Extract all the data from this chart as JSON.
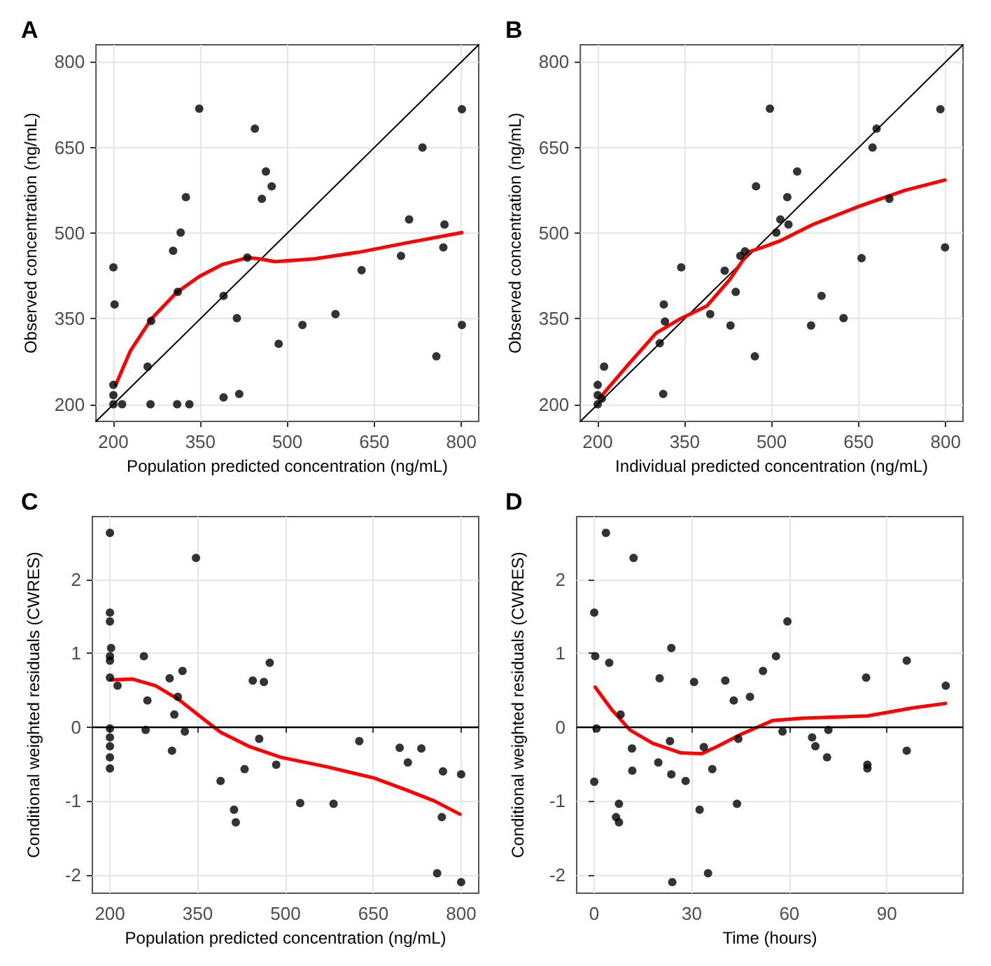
{
  "chart_data": [
    {
      "type": "scatter",
      "title": "A",
      "xlabel": "Population predicted concentration (ng/mL)",
      "ylabel": "Observed concentration (ng/mL)",
      "xlim": [
        170,
        830
      ],
      "ylim": [
        170,
        830
      ],
      "xticks": [
        200,
        350,
        500,
        650,
        800
      ],
      "yticks": [
        200,
        350,
        500,
        650,
        800
      ],
      "grid": true,
      "series": [
        {
          "marker": "circle",
          "color": "#000000",
          "x": [
            200,
            202,
            200,
            200,
            265,
            259,
            303,
            316,
            325,
            311,
            348,
            390,
            413,
            390,
            417,
            431,
            444,
            463,
            473,
            456,
            485,
            526,
            583,
            628,
            696,
            710,
            733,
            771,
            769,
            757,
            801,
            801,
            200,
            215,
            264,
            310,
            331
          ],
          "values": [
            440,
            375,
            234,
            216,
            346,
            266,
            469,
            501,
            563,
            397,
            718,
            390,
            351,
            212,
            218,
            457,
            683,
            608,
            582,
            560,
            306,
            339,
            358,
            435,
            460,
            524,
            650,
            515,
            475,
            284,
            717,
            339,
            200,
            200,
            200,
            200,
            200
          ]
        },
        {
          "type": "line",
          "marker": "none",
          "color": "#ff0000",
          "x": [
            204,
            229,
            265,
            309,
            348,
            388,
            431,
            452,
            479,
            547,
            626,
            706,
            801
          ],
          "values": [
            234,
            293,
            349,
            396,
            424,
            445,
            457,
            455,
            450,
            455,
            467,
            483,
            501
          ]
        },
        {
          "type": "line",
          "marker": "none",
          "color": "#000000",
          "x": [
            170,
            830
          ],
          "values": [
            170,
            830
          ]
        }
      ]
    },
    {
      "type": "scatter",
      "title": "B",
      "xlabel": "Individual predicted concentration (ng/mL)",
      "ylabel": "Observed concentration (ng/mL)",
      "xlim": [
        170,
        830
      ],
      "ylim": [
        170,
        830
      ],
      "xticks": [
        200,
        350,
        500,
        650,
        800
      ],
      "yticks": [
        200,
        350,
        500,
        650,
        800
      ],
      "grid": true,
      "series": [
        {
          "marker": "circle",
          "color": "#000000",
          "x": [
            200,
            200,
            207,
            211,
            307,
            313,
            314,
            316,
            344,
            394,
            419,
            429,
            438,
            446,
            454,
            471,
            473,
            497,
            508,
            515,
            527,
            529,
            544,
            568,
            586,
            624,
            655,
            674,
            681,
            703,
            791,
            799,
            200
          ],
          "values": [
            234,
            216,
            210,
            266,
            307,
            218,
            375,
            345,
            440,
            358,
            434,
            338,
            397,
            460,
            468,
            284,
            582,
            718,
            501,
            524,
            563,
            515,
            608,
            338,
            390,
            351,
            456,
            650,
            683,
            560,
            717,
            475,
            200
          ]
        },
        {
          "type": "line",
          "marker": "none",
          "color": "#ff0000",
          "x": [
            206,
            253,
            301,
            341,
            388,
            428,
            460,
            484,
            516,
            571,
            651,
            730,
            799
          ],
          "values": [
            214,
            270,
            325,
            349,
            372,
            419,
            467,
            475,
            487,
            515,
            547,
            575,
            593
          ]
        },
        {
          "type": "line",
          "marker": "none",
          "color": "#000000",
          "x": [
            170,
            830
          ],
          "values": [
            170,
            830
          ]
        }
      ]
    },
    {
      "type": "scatter",
      "title": "C",
      "xlabel": "Population predicted concentration (ng/mL)",
      "ylabel": "Conditional weighted residuals (CWRES)",
      "xlim": [
        170,
        830
      ],
      "ylim": [
        -2.25,
        2.85
      ],
      "xticks": [
        200,
        350,
        500,
        650,
        800
      ],
      "yticks": [
        -2,
        -1,
        0,
        1,
        2
      ],
      "grid": true,
      "ref_lines": [
        {
          "axis": "y",
          "value": 0,
          "color": "#000000"
        }
      ],
      "series": [
        {
          "marker": "circle",
          "color": "#000000",
          "x": [
            200,
            200,
            200,
            202,
            200,
            200,
            200,
            200,
            200,
            200,
            200,
            200,
            213,
            258,
            264,
            261,
            302,
            324,
            316,
            310,
            306,
            328,
            347,
            389,
            412,
            415,
            430,
            444,
            463,
            473,
            455,
            484,
            525,
            582,
            626,
            695,
            709,
            732,
            769,
            767,
            800,
            759,
            800
          ],
          "values": [
            2.63,
            1.55,
            1.43,
            1.07,
            0.96,
            0.9,
            0.67,
            -0.02,
            -0.14,
            -0.26,
            -0.41,
            -0.56,
            0.56,
            0.96,
            0.36,
            -0.04,
            0.66,
            0.76,
            0.41,
            0.17,
            -0.32,
            -0.06,
            2.29,
            -0.73,
            -1.12,
            -1.29,
            -0.57,
            0.63,
            0.61,
            0.87,
            -0.16,
            -0.51,
            -1.03,
            -1.04,
            -0.19,
            -0.28,
            -0.48,
            -0.29,
            -0.6,
            -1.22,
            -0.64,
            -1.98,
            -2.1
          ]
        },
        {
          "type": "line",
          "marker": "none",
          "color": "#ff0000",
          "x": [
            203,
            239,
            278,
            318,
            358,
            389,
            437,
            492,
            572,
            651,
            706,
            754,
            798
          ],
          "values": [
            0.64,
            0.65,
            0.56,
            0.37,
            0.12,
            -0.07,
            -0.26,
            -0.41,
            -0.54,
            -0.69,
            -0.85,
            -1.0,
            -1.18
          ]
        }
      ]
    },
    {
      "type": "scatter",
      "title": "D",
      "xlabel": "Time (hours)",
      "ylabel": "Conditional weighted residuals (CWRES)",
      "xlim": [
        -5.4,
        113.4
      ],
      "ylim": [
        -2.25,
        2.85
      ],
      "xticks": [
        0,
        30,
        60,
        90
      ],
      "yticks": [
        -2,
        -1,
        0,
        1,
        2
      ],
      "grid": true,
      "ref_lines": [
        {
          "axis": "y",
          "value": 0,
          "color": "#000000"
        }
      ],
      "series": [
        {
          "marker": "circle",
          "color": "#000000",
          "x": [
            0,
            0.3,
            0.7,
            0,
            3.6,
            4.6,
            8.1,
            7.6,
            6.7,
            7.6,
            11.6,
            11.7,
            12.1,
            20.1,
            19.7,
            23.7,
            23.3,
            23.7,
            28.1,
            30.7,
            32.4,
            33.7,
            36.3,
            40.3,
            42.9,
            44.3,
            43.9,
            47.9,
            51.9,
            55.9,
            57.9,
            59.4,
            67,
            68,
            71.6,
            72,
            83.6,
            84,
            84,
            96.1,
            96.1,
            108.1,
            24,
            35
          ],
          "values": [
            1.55,
            0.96,
            -0.02,
            -0.74,
            2.63,
            0.87,
            0.17,
            -1.04,
            -1.22,
            -1.29,
            -0.29,
            -0.59,
            2.29,
            0.66,
            -0.48,
            1.07,
            -0.19,
            -0.64,
            -0.73,
            0.61,
            -1.12,
            -0.27,
            -0.57,
            0.63,
            0.36,
            -0.16,
            -1.04,
            0.41,
            0.76,
            0.96,
            -0.06,
            1.43,
            -0.14,
            -0.26,
            -0.41,
            -0.04,
            0.67,
            -0.51,
            -0.56,
            0.9,
            -0.32,
            0.56,
            -2.1,
            -1.98
          ]
        },
        {
          "type": "line",
          "marker": "none",
          "color": "#ff0000",
          "x": [
            0.3,
            5.3,
            11,
            18,
            26.7,
            33,
            38,
            45,
            55,
            64,
            84,
            98,
            108
          ],
          "values": [
            0.54,
            0.24,
            -0.04,
            -0.22,
            -0.35,
            -0.36,
            -0.26,
            -0.1,
            0.09,
            0.12,
            0.15,
            0.26,
            0.32
          ]
        }
      ]
    }
  ]
}
